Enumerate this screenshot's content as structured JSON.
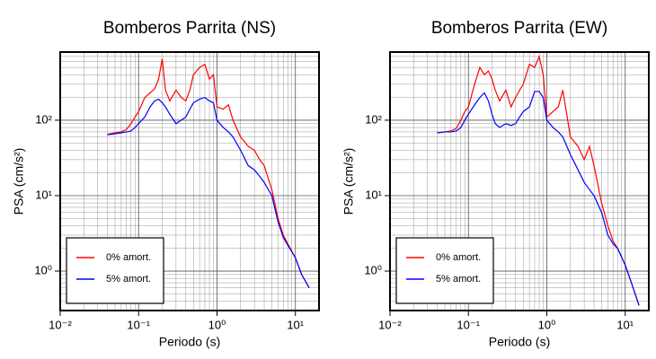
{
  "chart_data": [
    {
      "type": "line",
      "title": "Bomberos Parrita (NS)",
      "xlabel": "Periodo (s)",
      "ylabel": "PSA (cm/s²)",
      "xscale": "log",
      "yscale": "log",
      "grid": true,
      "legend": "lower left",
      "xlim": [
        0.01,
        20
      ],
      "ylim": [
        0.3,
        800
      ],
      "xticks": [
        {
          "value": 0.01,
          "label": "10⁻²"
        },
        {
          "value": 0.1,
          "label": "10⁻¹"
        },
        {
          "value": 1,
          "label": "10⁰"
        },
        {
          "value": 10,
          "label": "10¹"
        }
      ],
      "yticks": [
        {
          "value": 1,
          "label": "10⁰"
        },
        {
          "value": 10,
          "label": "10¹"
        },
        {
          "value": 100,
          "label": "10²"
        }
      ],
      "x": [
        0.04,
        0.05,
        0.06,
        0.07,
        0.08,
        0.09,
        0.1,
        0.12,
        0.14,
        0.16,
        0.18,
        0.2,
        0.22,
        0.25,
        0.3,
        0.35,
        0.4,
        0.45,
        0.5,
        0.6,
        0.7,
        0.8,
        0.9,
        1.0,
        1.2,
        1.4,
        1.6,
        2.0,
        2.5,
        3.0,
        3.5,
        4,
        5,
        6,
        7,
        8,
        10,
        12,
        15
      ],
      "series": [
        {
          "name": "0% amort.",
          "color": "#ff0000",
          "values": [
            65,
            68,
            70,
            75,
            90,
            110,
            130,
            200,
            230,
            260,
            350,
            650,
            250,
            180,
            250,
            200,
            180,
            250,
            400,
            500,
            550,
            350,
            400,
            150,
            140,
            160,
            100,
            60,
            45,
            40,
            30,
            25,
            12,
            5,
            3,
            2.3,
            1.5,
            0.9,
            0.6
          ]
        },
        {
          "name": "5% amort.",
          "color": "#0000ff",
          "values": [
            64,
            66,
            68,
            70,
            72,
            80,
            90,
            110,
            150,
            180,
            190,
            170,
            150,
            120,
            90,
            100,
            110,
            140,
            170,
            190,
            200,
            180,
            170,
            100,
            80,
            70,
            60,
            40,
            25,
            22,
            18,
            15,
            10,
            4.5,
            2.8,
            2.2,
            1.5,
            0.9,
            0.6
          ]
        }
      ]
    },
    {
      "type": "line",
      "title": "Bomberos Parrita (EW)",
      "xlabel": "Periodo (s)",
      "ylabel": "PSA (cm/s²)",
      "xscale": "log",
      "yscale": "log",
      "grid": true,
      "legend": "lower left",
      "xlim": [
        0.01,
        20
      ],
      "ylim": [
        0.3,
        800
      ],
      "xticks": [
        {
          "value": 0.01,
          "label": "10⁻²"
        },
        {
          "value": 0.1,
          "label": "10⁻¹"
        },
        {
          "value": 1,
          "label": "10⁰"
        },
        {
          "value": 10,
          "label": "10¹"
        }
      ],
      "yticks": [
        {
          "value": 1,
          "label": "10⁰"
        },
        {
          "value": 10,
          "label": "10¹"
        },
        {
          "value": 100,
          "label": "10²"
        }
      ],
      "x": [
        0.04,
        0.05,
        0.06,
        0.07,
        0.08,
        0.09,
        0.1,
        0.12,
        0.14,
        0.16,
        0.18,
        0.2,
        0.22,
        0.25,
        0.3,
        0.35,
        0.4,
        0.45,
        0.5,
        0.6,
        0.7,
        0.8,
        0.9,
        1.0,
        1.2,
        1.4,
        1.6,
        2.0,
        2.5,
        3.0,
        3.5,
        4,
        5,
        6,
        7,
        8,
        10,
        12,
        15
      ],
      "series": [
        {
          "name": "0% amort.",
          "color": "#ff0000",
          "values": [
            68,
            70,
            72,
            78,
            100,
            130,
            150,
            300,
            500,
            400,
            450,
            350,
            250,
            180,
            250,
            150,
            200,
            250,
            300,
            550,
            500,
            700,
            400,
            110,
            130,
            150,
            250,
            60,
            45,
            30,
            45,
            25,
            8,
            4,
            2.5,
            2,
            1.2,
            0.7,
            0.35
          ]
        },
        {
          "name": "5% amort.",
          "color": "#0000ff",
          "values": [
            68,
            70,
            70,
            72,
            80,
            100,
            120,
            160,
            200,
            230,
            180,
            120,
            90,
            80,
            90,
            85,
            90,
            110,
            130,
            150,
            240,
            240,
            200,
            100,
            80,
            70,
            60,
            35,
            22,
            15,
            12,
            10,
            6,
            3,
            2.3,
            2,
            1.2,
            0.7,
            0.35
          ]
        }
      ]
    }
  ]
}
